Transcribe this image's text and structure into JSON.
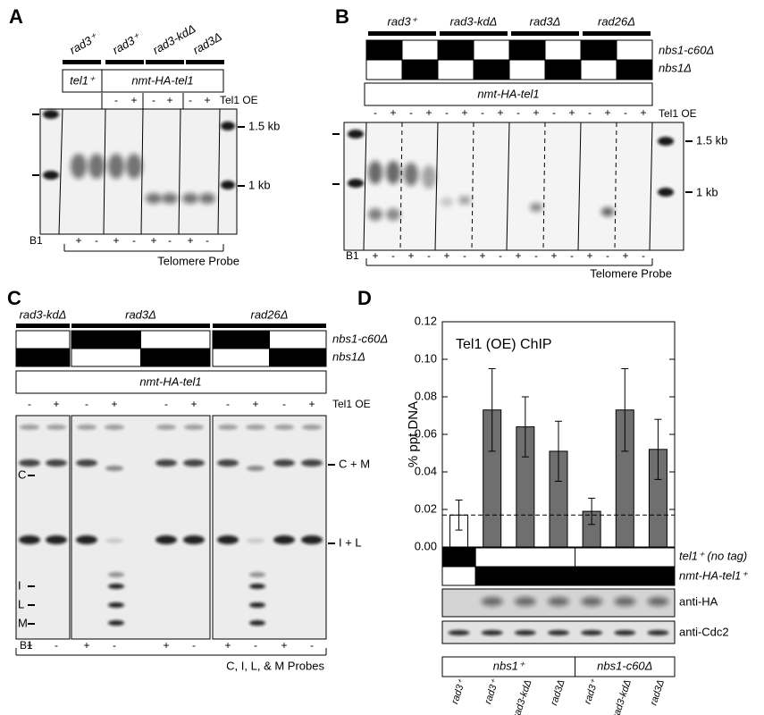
{
  "panel_a": {
    "label": "A",
    "strains": [
      "rad3⁺",
      "rad3⁺",
      "rad3-kdΔ",
      "rad3Δ"
    ],
    "genotype": [
      "tel1⁺",
      "nmt-HA-tel1"
    ],
    "oe_label": "Tel1 OE",
    "oe": [
      "-",
      "+",
      "-",
      "+",
      "-",
      "+"
    ],
    "size_markers": [
      "1.5 kb",
      "1 kb"
    ],
    "b1_label": "B1",
    "b1": [
      "+",
      "-",
      "+",
      "-",
      "+",
      "-",
      "+",
      "-"
    ],
    "probe": "Telomere Probe"
  },
  "panel_b": {
    "label": "B",
    "strains": [
      "rad3⁺",
      "rad3-kdΔ",
      "rad3Δ",
      "rad26Δ"
    ],
    "alleles": [
      "nbs1-c60Δ",
      "nbs1Δ"
    ],
    "genotype": "nmt-HA-tel1",
    "oe_label": "Tel1 OE",
    "oe": [
      "-",
      "+",
      "-",
      "+",
      "-",
      "+",
      "-",
      "+",
      "-",
      "+",
      "-",
      "+",
      "-",
      "+",
      "-",
      "+"
    ],
    "size_markers": [
      "1.5 kb",
      "1 kb"
    ],
    "b1_label": "B1",
    "b1": [
      "+",
      "-",
      "+",
      "-",
      "+",
      "-",
      "+",
      "-",
      "+",
      "-",
      "+",
      "-",
      "+",
      "-",
      "+",
      "-"
    ],
    "probe": "Telomere Probe"
  },
  "panel_c": {
    "label": "C",
    "strains": [
      "rad3-kdΔ",
      "rad3Δ",
      "rad26Δ"
    ],
    "alleles": [
      "nbs1-c60Δ",
      "nbs1Δ"
    ],
    "genotype": "nmt-HA-tel1",
    "oe_label": "Tel1 OE",
    "oe": [
      "-",
      "+",
      "-",
      "+",
      "-",
      "+",
      "-",
      "+",
      "-",
      "+"
    ],
    "right_markers": [
      "C + M",
      "I + L"
    ],
    "left_markers": [
      "C",
      "I",
      "L",
      "M"
    ],
    "b1_label": "B1",
    "b1": [
      "+",
      "-",
      "+",
      "-",
      "+",
      "-",
      "+",
      "-",
      "+",
      "-"
    ],
    "probe": "C, I, L, & M Probes"
  },
  "chart_data": {
    "type": "bar",
    "panel_label": "D",
    "title": "Tel1 (OE) ChIP",
    "y_label": "% ppt DNA",
    "categories": [
      "rad3⁺",
      "rad3⁺",
      "rad3-kdΔ",
      "rad3Δ",
      "rad3⁺",
      "rad3-kdΔ",
      "rad3Δ"
    ],
    "values": [
      0.017,
      0.073,
      0.064,
      0.051,
      0.019,
      0.073,
      0.052
    ],
    "errors": [
      0.008,
      0.022,
      0.016,
      0.016,
      0.007,
      0.022,
      0.016
    ],
    "colors": [
      "#ffffff",
      "#6f6f6f",
      "#6f6f6f",
      "#6f6f6f",
      "#6f6f6f",
      "#6f6f6f",
      "#6f6f6f"
    ],
    "ylim": [
      0,
      0.12
    ],
    "yticks": [
      {
        "value": 0,
        "label": "0.00"
      },
      {
        "value": 0.02,
        "label": "0.02"
      },
      {
        "value": 0.04,
        "label": "0.04"
      },
      {
        "value": 0.06,
        "label": "0.06"
      },
      {
        "value": 0.08,
        "label": "0.08"
      },
      {
        "value": 0.1,
        "label": "0.10"
      },
      {
        "value": 0.12,
        "label": "0.12"
      }
    ],
    "reference_line": 0.017,
    "genotype_rows": [
      "tel1⁺ (no tag)",
      "nmt-HA-tel1⁺"
    ],
    "blots": [
      "anti-HA",
      "anti-Cdc2"
    ],
    "groups": [
      "nbs1⁺",
      "nbs1-c60Δ"
    ]
  }
}
